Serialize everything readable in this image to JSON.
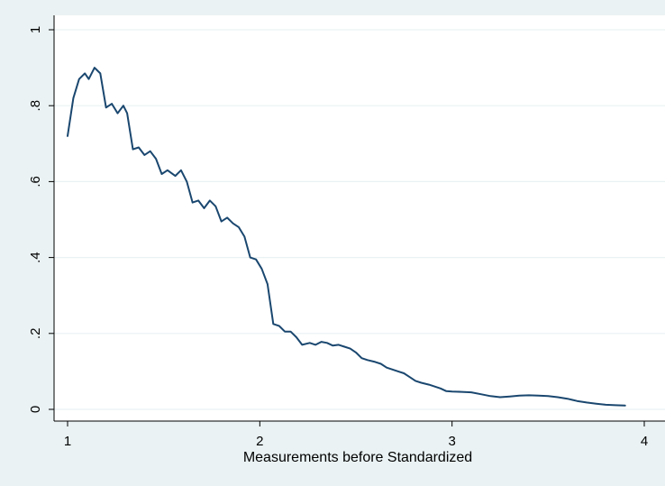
{
  "chart_data": {
    "type": "line",
    "title": "",
    "xlabel": "Measurements before Standardized",
    "ylabel": "",
    "xlim": [
      1,
      4
    ],
    "ylim": [
      0,
      1
    ],
    "x_ticks": [
      1,
      2,
      3,
      4
    ],
    "x_tick_labels": [
      "1",
      "2",
      "3",
      "4"
    ],
    "y_ticks": [
      0,
      0.2,
      0.4,
      0.6,
      0.8,
      1
    ],
    "y_tick_labels": [
      "0",
      ".2",
      ".4",
      ".6",
      ".8",
      "1"
    ],
    "grid": "horizontal",
    "series": [
      {
        "color": "#1a476f",
        "points": [
          [
            1.0,
            0.72
          ],
          [
            1.03,
            0.82
          ],
          [
            1.06,
            0.87
          ],
          [
            1.09,
            0.885
          ],
          [
            1.11,
            0.87
          ],
          [
            1.14,
            0.9
          ],
          [
            1.17,
            0.885
          ],
          [
            1.2,
            0.795
          ],
          [
            1.23,
            0.805
          ],
          [
            1.26,
            0.78
          ],
          [
            1.29,
            0.8
          ],
          [
            1.31,
            0.78
          ],
          [
            1.34,
            0.685
          ],
          [
            1.37,
            0.69
          ],
          [
            1.4,
            0.67
          ],
          [
            1.43,
            0.68
          ],
          [
            1.46,
            0.66
          ],
          [
            1.49,
            0.62
          ],
          [
            1.52,
            0.63
          ],
          [
            1.56,
            0.615
          ],
          [
            1.59,
            0.63
          ],
          [
            1.62,
            0.6
          ],
          [
            1.65,
            0.545
          ],
          [
            1.68,
            0.55
          ],
          [
            1.71,
            0.53
          ],
          [
            1.74,
            0.55
          ],
          [
            1.77,
            0.535
          ],
          [
            1.8,
            0.495
          ],
          [
            1.83,
            0.505
          ],
          [
            1.86,
            0.49
          ],
          [
            1.89,
            0.48
          ],
          [
            1.92,
            0.455
          ],
          [
            1.95,
            0.4
          ],
          [
            1.98,
            0.395
          ],
          [
            2.01,
            0.37
          ],
          [
            2.04,
            0.33
          ],
          [
            2.07,
            0.225
          ],
          [
            2.1,
            0.22
          ],
          [
            2.13,
            0.205
          ],
          [
            2.16,
            0.205
          ],
          [
            2.19,
            0.19
          ],
          [
            2.22,
            0.17
          ],
          [
            2.26,
            0.175
          ],
          [
            2.29,
            0.17
          ],
          [
            2.32,
            0.178
          ],
          [
            2.35,
            0.175
          ],
          [
            2.38,
            0.168
          ],
          [
            2.41,
            0.17
          ],
          [
            2.44,
            0.165
          ],
          [
            2.47,
            0.16
          ],
          [
            2.5,
            0.15
          ],
          [
            2.53,
            0.135
          ],
          [
            2.56,
            0.13
          ],
          [
            2.6,
            0.125
          ],
          [
            2.63,
            0.12
          ],
          [
            2.66,
            0.11
          ],
          [
            2.69,
            0.105
          ],
          [
            2.72,
            0.1
          ],
          [
            2.75,
            0.095
          ],
          [
            2.78,
            0.085
          ],
          [
            2.81,
            0.075
          ],
          [
            2.84,
            0.07
          ],
          [
            2.88,
            0.065
          ],
          [
            2.91,
            0.06
          ],
          [
            2.94,
            0.055
          ],
          [
            2.97,
            0.048
          ],
          [
            3.0,
            0.047
          ],
          [
            3.05,
            0.046
          ],
          [
            3.1,
            0.045
          ],
          [
            3.15,
            0.04
          ],
          [
            3.2,
            0.035
          ],
          [
            3.25,
            0.032
          ],
          [
            3.3,
            0.034
          ],
          [
            3.35,
            0.036
          ],
          [
            3.4,
            0.037
          ],
          [
            3.45,
            0.036
          ],
          [
            3.5,
            0.035
          ],
          [
            3.55,
            0.032
          ],
          [
            3.6,
            0.028
          ],
          [
            3.65,
            0.022
          ],
          [
            3.7,
            0.018
          ],
          [
            3.75,
            0.015
          ],
          [
            3.8,
            0.012
          ],
          [
            3.85,
            0.011
          ],
          [
            3.9,
            0.01
          ]
        ]
      }
    ]
  }
}
